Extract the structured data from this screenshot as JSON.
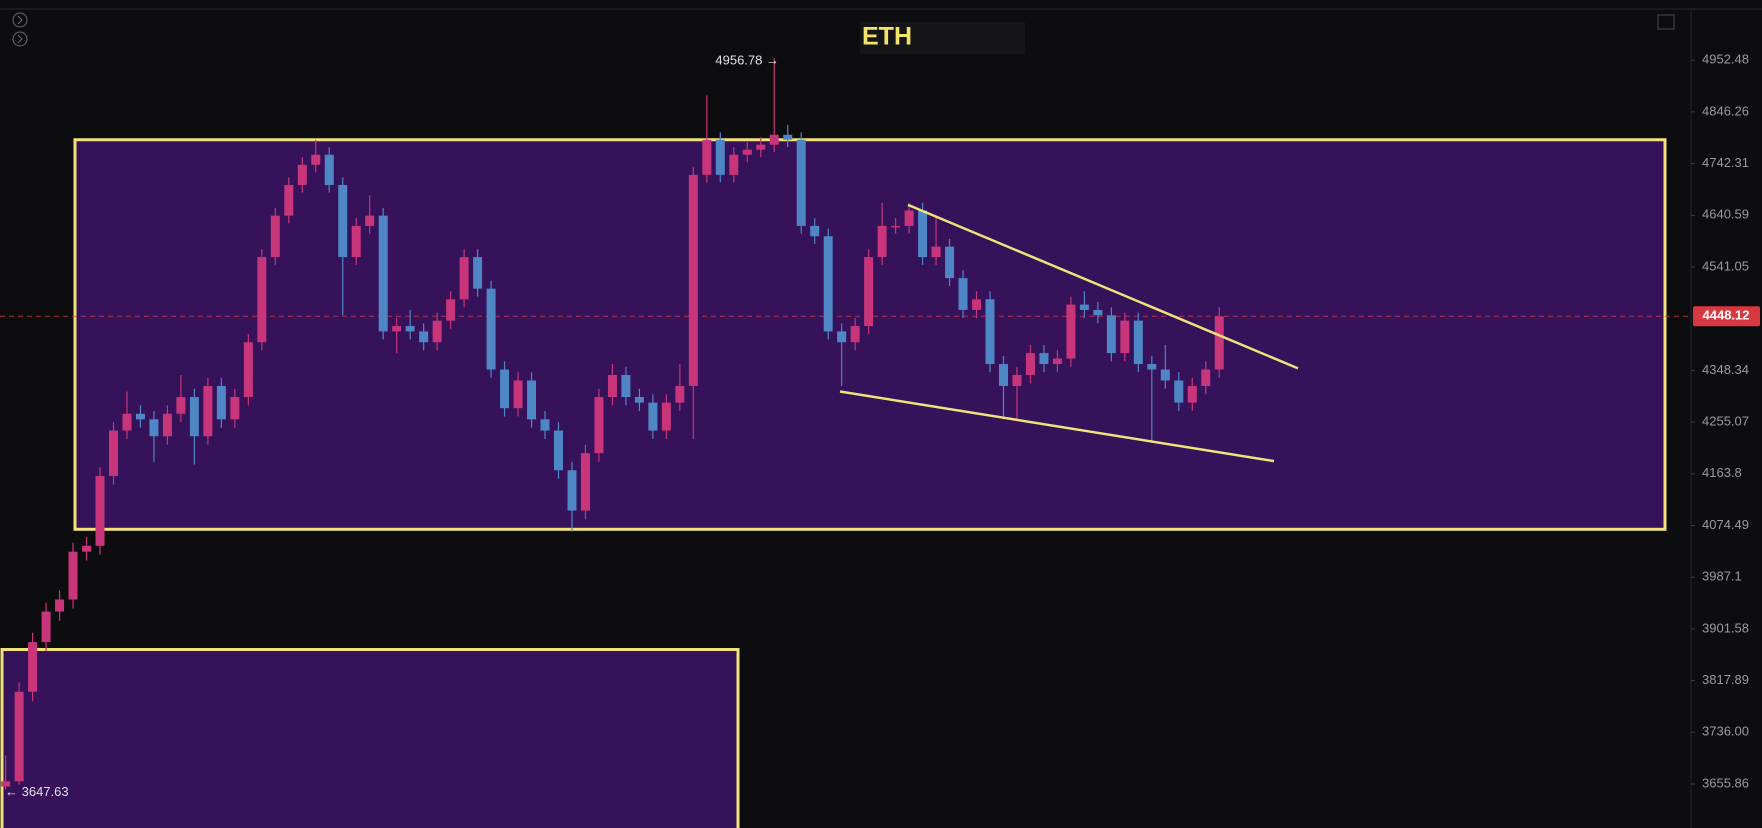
{
  "chart_data": {
    "type": "candlestick",
    "title": "ETH",
    "log_scale": true,
    "grid": false,
    "up_color": "#c8357a",
    "down_color": "#4f86c6",
    "zone_color": "#36125a",
    "drawing_color": "#f2e27a",
    "ylim": [
      3589,
      5060
    ],
    "yticks": [
      4952.48,
      4846.26,
      4742.31,
      4640.59,
      4541.05,
      4348.34,
      4255.07,
      4163.8,
      4074.49,
      3987.1,
      3901.58,
      3817.89,
      {
        "value": 3736,
        "label": "3736.00"
      },
      3655.86
    ],
    "price_line": {
      "value": 4448.12,
      "label": "4448.12",
      "color": "#d8383f"
    },
    "high_label": {
      "value": 4956.78,
      "label": "4956.78 →"
    },
    "low_label": {
      "value": 3647.63,
      "label": "← 3647.63"
    },
    "zones": [
      {
        "top": 4790,
        "bottom": 4068
      },
      {
        "top": 3868
      }
    ],
    "trendlines": [
      {
        "start": 4661,
        "end": 4352
      },
      {
        "start": 4310,
        "end": 4186
      }
    ],
    "ohlc": [
      [
        3652,
        3700,
        3647.63,
        3660
      ],
      [
        3660,
        3815,
        3655,
        3800
      ],
      [
        3800,
        3895,
        3785,
        3880
      ],
      [
        3880,
        3945,
        3865,
        3930
      ],
      [
        3930,
        3965,
        3915,
        3950
      ],
      [
        3950,
        4045,
        3935,
        4030
      ],
      [
        4030,
        4055,
        4015,
        4040
      ],
      [
        4040,
        4175,
        4025,
        4160
      ],
      [
        4160,
        4255,
        4145,
        4240
      ],
      [
        4240,
        4310,
        4225,
        4270
      ],
      [
        4270,
        4285,
        4245,
        4260
      ],
      [
        4260,
        4275,
        4185,
        4230
      ],
      [
        4230,
        4285,
        4215,
        4270
      ],
      [
        4270,
        4340,
        4255,
        4300
      ],
      [
        4300,
        4315,
        4180,
        4230
      ],
      [
        4230,
        4335,
        4215,
        4320
      ],
      [
        4320,
        4335,
        4245,
        4260
      ],
      [
        4260,
        4315,
        4245,
        4300
      ],
      [
        4300,
        4415,
        4285,
        4400
      ],
      [
        4400,
        4575,
        4385,
        4560
      ],
      [
        4560,
        4655,
        4545,
        4640
      ],
      [
        4640,
        4715,
        4625,
        4700
      ],
      [
        4700,
        4755,
        4685,
        4740
      ],
      [
        4740,
        4790,
        4725,
        4760
      ],
      [
        4760,
        4775,
        4685,
        4700
      ],
      [
        4700,
        4715,
        4450,
        4560
      ],
      [
        4560,
        4635,
        4545,
        4620
      ],
      [
        4620,
        4680,
        4605,
        4640
      ],
      [
        4640,
        4655,
        4405,
        4420
      ],
      [
        4420,
        4445,
        4380,
        4430
      ],
      [
        4430,
        4460,
        4405,
        4420
      ],
      [
        4420,
        4435,
        4385,
        4400
      ],
      [
        4400,
        4455,
        4385,
        4440
      ],
      [
        4440,
        4495,
        4425,
        4480
      ],
      [
        4480,
        4575,
        4465,
        4560
      ],
      [
        4560,
        4575,
        4485,
        4500
      ],
      [
        4500,
        4515,
        4335,
        4350
      ],
      [
        4350,
        4365,
        4265,
        4280
      ],
      [
        4280,
        4345,
        4265,
        4330
      ],
      [
        4330,
        4345,
        4245,
        4260
      ],
      [
        4260,
        4275,
        4225,
        4240
      ],
      [
        4240,
        4255,
        4155,
        4170
      ],
      [
        4170,
        4185,
        4064,
        4100
      ],
      [
        4100,
        4215,
        4085,
        4200
      ],
      [
        4200,
        4315,
        4185,
        4300
      ],
      [
        4300,
        4360,
        4285,
        4340
      ],
      [
        4340,
        4355,
        4285,
        4300
      ],
      [
        4300,
        4315,
        4275,
        4290
      ],
      [
        4290,
        4305,
        4225,
        4240
      ],
      [
        4240,
        4305,
        4225,
        4290
      ],
      [
        4290,
        4360,
        4275,
        4320
      ],
      [
        4320,
        4735,
        4225,
        4720
      ],
      [
        4720,
        4880,
        4705,
        4790
      ],
      [
        4790,
        4805,
        4705,
        4720
      ],
      [
        4720,
        4775,
        4705,
        4760
      ],
      [
        4760,
        4785,
        4745,
        4770
      ],
      [
        4770,
        4795,
        4755,
        4780
      ],
      [
        4780,
        4956.78,
        4765,
        4800
      ],
      [
        4800,
        4820,
        4775,
        4790
      ],
      [
        4790,
        4805,
        4605,
        4620
      ],
      [
        4620,
        4635,
        4585,
        4600
      ],
      [
        4600,
        4615,
        4405,
        4420
      ],
      [
        4420,
        4435,
        4320,
        4400
      ],
      [
        4400,
        4445,
        4385,
        4430
      ],
      [
        4430,
        4575,
        4415,
        4560
      ],
      [
        4560,
        4665,
        4545,
        4620
      ],
      [
        4620,
        4635,
        4605,
        4620
      ],
      [
        4620,
        4665,
        4605,
        4650
      ],
      [
        4650,
        4665,
        4545,
        4560
      ],
      [
        4560,
        4640,
        4545,
        4580
      ],
      [
        4580,
        4595,
        4505,
        4520
      ],
      [
        4520,
        4535,
        4445,
        4460
      ],
      [
        4460,
        4495,
        4445,
        4480
      ],
      [
        4480,
        4495,
        4345,
        4360
      ],
      [
        4360,
        4375,
        4260,
        4320
      ],
      [
        4320,
        4355,
        4260,
        4340
      ],
      [
        4340,
        4395,
        4325,
        4380
      ],
      [
        4380,
        4395,
        4345,
        4360
      ],
      [
        4360,
        4385,
        4345,
        4370
      ],
      [
        4370,
        4485,
        4355,
        4470
      ],
      [
        4470,
        4495,
        4445,
        4460
      ],
      [
        4460,
        4475,
        4435,
        4450
      ],
      [
        4450,
        4465,
        4365,
        4380
      ],
      [
        4380,
        4455,
        4365,
        4440
      ],
      [
        4440,
        4455,
        4345,
        4360
      ],
      [
        4360,
        4375,
        4218,
        4350
      ],
      [
        4350,
        4395,
        4315,
        4330
      ],
      [
        4330,
        4345,
        4275,
        4290
      ],
      [
        4290,
        4335,
        4275,
        4320
      ],
      [
        4320,
        4365,
        4305,
        4350
      ],
      [
        4350,
        4465,
        4335,
        4448.12
      ]
    ]
  }
}
